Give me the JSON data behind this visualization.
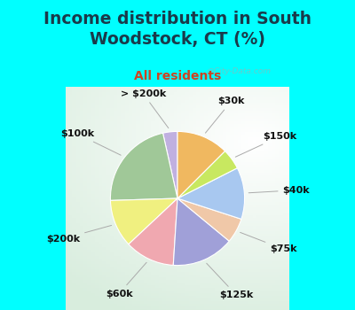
{
  "title": "Income distribution in South\nWoodstock, CT (%)",
  "subtitle": "All residents",
  "bg_color": "#00FFFF",
  "chart_bg_color": "#e0f0e8",
  "labels": [
    "> $200k",
    "$100k",
    "$200k",
    "$60k",
    "$125k",
    "$75k",
    "$40k",
    "$150k",
    "$30k"
  ],
  "values": [
    3.5,
    22.0,
    11.5,
    12.0,
    15.0,
    6.0,
    12.5,
    5.0,
    12.5
  ],
  "colors": [
    "#c0b0e0",
    "#a0c898",
    "#f0f080",
    "#f0a8b0",
    "#a0a0d8",
    "#f0c8a8",
    "#a8c8f0",
    "#c8e860",
    "#f0b860"
  ],
  "startangle": 90,
  "label_fontsize": 8,
  "title_fontsize": 13.5,
  "subtitle_fontsize": 10,
  "title_color": "#1a3a4a",
  "subtitle_color": "#cc4422",
  "watermark": "@City-Data.com"
}
